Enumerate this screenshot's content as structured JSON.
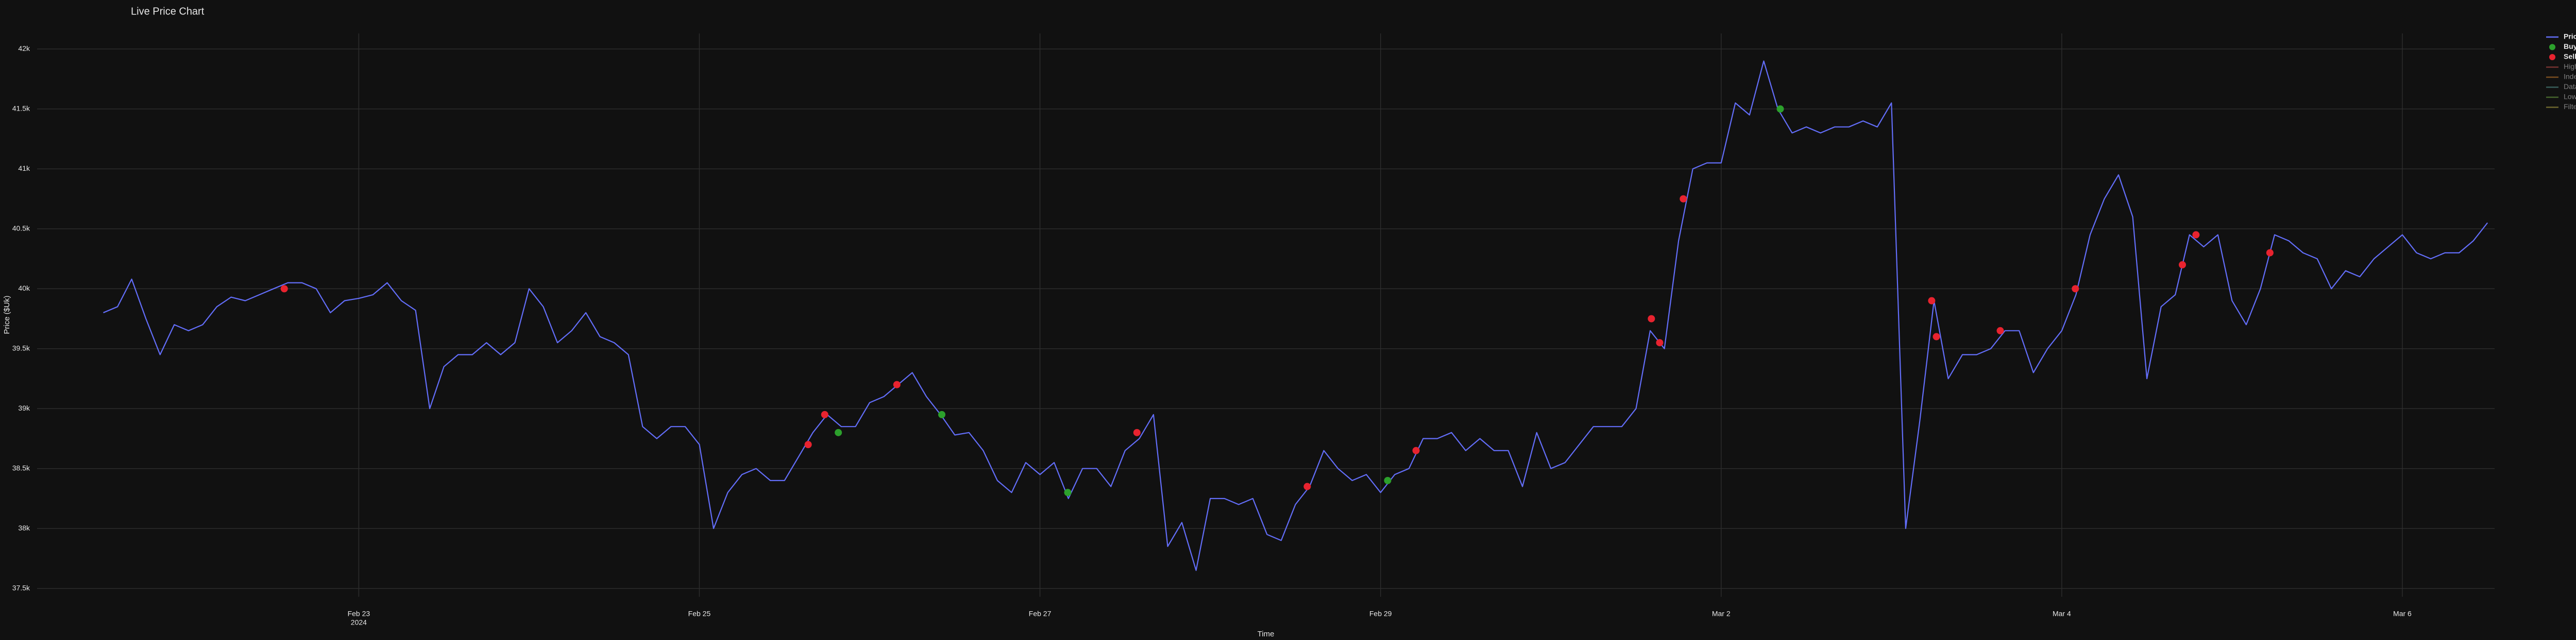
{
  "chart_data": {
    "type": "line",
    "title": "Live Price Chart",
    "x_label": "Time",
    "y_label": "Price ($Uk)",
    "xlim": [
      "2024-02-21 02:40",
      "2024-03-06 13:00"
    ],
    "xticks": [
      {
        "value": "2024-02-23 00:00",
        "label": "Feb 23"
      },
      {
        "value": "2024-02-25 00:00",
        "label": "Feb 25"
      },
      {
        "value": "2024-02-27 00:00",
        "label": "Feb 27"
      },
      {
        "value": "2024-02-29 00:00",
        "label": "Feb 29"
      },
      {
        "value": "2024-03-02 00:00",
        "label": "Mar 2"
      },
      {
        "value": "2024-03-04 00:00",
        "label": "Mar 4"
      },
      {
        "value": "2024-03-06 00:00",
        "label": "Mar 6"
      }
    ],
    "xtick_year": "2024",
    "ylim": [
      37430,
      42130
    ],
    "yticks": [
      {
        "value": 37500,
        "label": "37.5k"
      },
      {
        "value": 38000,
        "label": "38k"
      },
      {
        "value": 38500,
        "label": "38.5k"
      },
      {
        "value": 39000,
        "label": "39k"
      },
      {
        "value": 39500,
        "label": "39.5k"
      },
      {
        "value": 40000,
        "label": "40k"
      },
      {
        "value": 40500,
        "label": "40.5k"
      },
      {
        "value": 41000,
        "label": "41k"
      },
      {
        "value": 41500,
        "label": "41.5k"
      },
      {
        "value": 42000,
        "label": "42k"
      }
    ],
    "grid": true,
    "legend": "outside-right",
    "series": [
      {
        "name": "Price Graph",
        "color": "#636efa",
        "mode": "lines",
        "x": [
          "2024-02-21 12:00",
          "2024-02-21 14:00",
          "2024-02-21 16:00",
          "2024-02-21 18:00",
          "2024-02-21 20:00",
          "2024-02-21 22:00",
          "2024-02-22 00:00",
          "2024-02-22 02:00",
          "2024-02-22 04:00",
          "2024-02-22 06:00",
          "2024-02-22 08:00",
          "2024-02-22 10:00",
          "2024-02-22 12:00",
          "2024-02-22 14:00",
          "2024-02-22 16:00",
          "2024-02-22 18:00",
          "2024-02-22 20:00",
          "2024-02-22 22:00",
          "2024-02-23 00:00",
          "2024-02-23 02:00",
          "2024-02-23 04:00",
          "2024-02-23 06:00",
          "2024-02-23 08:00",
          "2024-02-23 10:00",
          "2024-02-23 12:00",
          "2024-02-23 14:00",
          "2024-02-23 16:00",
          "2024-02-23 18:00",
          "2024-02-23 20:00",
          "2024-02-23 22:00",
          "2024-02-24 00:00",
          "2024-02-24 02:00",
          "2024-02-24 04:00",
          "2024-02-24 06:00",
          "2024-02-24 08:00",
          "2024-02-24 10:00",
          "2024-02-24 12:00",
          "2024-02-24 14:00",
          "2024-02-24 16:00",
          "2024-02-24 18:00",
          "2024-02-24 20:00",
          "2024-02-24 22:00",
          "2024-02-25 00:00",
          "2024-02-25 02:00",
          "2024-02-25 04:00",
          "2024-02-25 06:00",
          "2024-02-25 08:00",
          "2024-02-25 10:00",
          "2024-02-25 12:00",
          "2024-02-25 14:00",
          "2024-02-25 16:00",
          "2024-02-25 18:00",
          "2024-02-25 20:00",
          "2024-02-25 22:00",
          "2024-02-26 00:00",
          "2024-02-26 02:00",
          "2024-02-26 04:00",
          "2024-02-26 06:00",
          "2024-02-26 08:00",
          "2024-02-26 10:00",
          "2024-02-26 12:00",
          "2024-02-26 14:00",
          "2024-02-26 16:00",
          "2024-02-26 18:00",
          "2024-02-26 20:00",
          "2024-02-26 22:00",
          "2024-02-27 00:00",
          "2024-02-27 02:00",
          "2024-02-27 04:00",
          "2024-02-27 06:00",
          "2024-02-27 08:00",
          "2024-02-27 10:00",
          "2024-02-27 12:00",
          "2024-02-27 14:00",
          "2024-02-27 16:00",
          "2024-02-27 18:00",
          "2024-02-27 20:00",
          "2024-02-27 22:00",
          "2024-02-28 00:00",
          "2024-02-28 02:00",
          "2024-02-28 04:00",
          "2024-02-28 06:00",
          "2024-02-28 08:00",
          "2024-02-28 10:00",
          "2024-02-28 12:00",
          "2024-02-28 14:00",
          "2024-02-28 16:00",
          "2024-02-28 18:00",
          "2024-02-28 20:00",
          "2024-02-28 22:00",
          "2024-02-29 00:00",
          "2024-02-29 02:00",
          "2024-02-29 04:00",
          "2024-02-29 06:00",
          "2024-02-29 08:00",
          "2024-02-29 10:00",
          "2024-02-29 12:00",
          "2024-02-29 14:00",
          "2024-02-29 16:00",
          "2024-02-29 18:00",
          "2024-02-29 20:00",
          "2024-02-29 22:00",
          "2024-03-01 00:00",
          "2024-03-01 02:00",
          "2024-03-01 04:00",
          "2024-03-01 06:00",
          "2024-03-01 08:00",
          "2024-03-01 10:00",
          "2024-03-01 12:00",
          "2024-03-01 14:00",
          "2024-03-01 16:00",
          "2024-03-01 18:00",
          "2024-03-01 20:00",
          "2024-03-01 22:00",
          "2024-03-02 00:00",
          "2024-03-02 02:00",
          "2024-03-02 04:00",
          "2024-03-02 06:00",
          "2024-03-02 08:00",
          "2024-03-02 10:00",
          "2024-03-02 12:00",
          "2024-03-02 14:00",
          "2024-03-02 16:00",
          "2024-03-02 18:00",
          "2024-03-02 20:00",
          "2024-03-02 22:00",
          "2024-03-03 00:00",
          "2024-03-03 02:00",
          "2024-03-03 04:00",
          "2024-03-03 06:00",
          "2024-03-03 08:00",
          "2024-03-03 10:00",
          "2024-03-03 12:00",
          "2024-03-03 14:00",
          "2024-03-03 16:00",
          "2024-03-03 18:00",
          "2024-03-03 20:00",
          "2024-03-03 22:00",
          "2024-03-04 00:00",
          "2024-03-04 02:00",
          "2024-03-04 04:00",
          "2024-03-04 06:00",
          "2024-03-04 08:00",
          "2024-03-04 10:00",
          "2024-03-04 12:00",
          "2024-03-04 14:00",
          "2024-03-04 16:00",
          "2024-03-04 18:00",
          "2024-03-04 20:00",
          "2024-03-04 22:00",
          "2024-03-05 00:00",
          "2024-03-05 02:00",
          "2024-03-05 04:00",
          "2024-03-05 06:00",
          "2024-03-05 08:00",
          "2024-03-05 10:00",
          "2024-03-05 12:00",
          "2024-03-05 14:00",
          "2024-03-05 16:00",
          "2024-03-05 18:00",
          "2024-03-05 20:00",
          "2024-03-05 22:00",
          "2024-03-06 00:00",
          "2024-03-06 02:00",
          "2024-03-06 04:00",
          "2024-03-06 06:00",
          "2024-03-06 08:00",
          "2024-03-06 10:00",
          "2024-03-06 12:00"
        ],
        "values": [
          39800,
          39850,
          40080,
          39750,
          39450,
          39700,
          39650,
          39700,
          39850,
          39930,
          39900,
          39950,
          40000,
          40050,
          40050,
          40000,
          39800,
          39900,
          39920,
          39950,
          40050,
          39900,
          39820,
          39000,
          39350,
          39450,
          39450,
          39550,
          39450,
          39550,
          40000,
          39850,
          39550,
          39650,
          39800,
          39600,
          39550,
          39450,
          38850,
          38750,
          38850,
          38850,
          38700,
          38000,
          38300,
          38450,
          38500,
          38400,
          38400,
          38600,
          38800,
          38950,
          38850,
          38850,
          39050,
          39100,
          39200,
          39300,
          39100,
          38950,
          38780,
          38800,
          38650,
          38400,
          38300,
          38550,
          38450,
          38550,
          38250,
          38500,
          38500,
          38350,
          38650,
          38750,
          38950,
          37850,
          38050,
          37650,
          38250,
          38250,
          38200,
          38250,
          37950,
          37900,
          38200,
          38350,
          38650,
          38500,
          38400,
          38450,
          38300,
          38450,
          38500,
          38750,
          38750,
          38800,
          38650,
          38750,
          38650,
          38650,
          38350,
          38800,
          38500,
          38550,
          38700,
          38850,
          38850,
          38850,
          39000,
          39650,
          39500,
          40400,
          41000,
          41050,
          41050,
          41550,
          41450,
          41900,
          41500,
          41300,
          41350,
          41300,
          41350,
          41350,
          41400,
          41350,
          41550,
          38000,
          38900,
          39900,
          39250,
          39450,
          39450,
          39500,
          39650,
          39650,
          39300,
          39500,
          39650,
          39950,
          40450,
          40750,
          40950,
          40600,
          39250,
          39850,
          39950,
          40450,
          40350,
          40450,
          39900,
          39700,
          40000,
          40450,
          40400,
          40300,
          40250,
          40000,
          40150,
          40100,
          40250,
          40350,
          40450,
          40300,
          40250,
          40300,
          40300,
          40400,
          40550
        ]
      },
      {
        "name": "Buy Events",
        "color": "#2ca02c",
        "mode": "markers",
        "x": [
          "2024-02-25 19:35",
          "2024-02-26 10:10",
          "2024-02-27 03:55",
          "2024-02-29 01:00",
          "2024-03-02 08:20"
        ],
        "values": [
          38800,
          38950,
          38300,
          38400,
          41500
        ]
      },
      {
        "name": "Sell Events",
        "color": "#e8232f",
        "mode": "markers",
        "x": [
          "2024-02-22 13:30",
          "2024-02-25 15:20",
          "2024-02-25 17:40",
          "2024-02-26 03:50",
          "2024-02-27 13:40",
          "2024-02-28 13:40",
          "2024-02-29 05:00",
          "2024-03-01 14:10",
          "2024-03-01 15:20",
          "2024-03-01 18:40",
          "2024-03-03 05:40",
          "2024-03-03 06:20",
          "2024-03-03 15:20",
          "2024-03-04 01:55",
          "2024-03-04 17:00",
          "2024-03-04 18:55",
          "2024-03-05 05:20"
        ],
        "values": [
          40000,
          38700,
          38950,
          39200,
          38800,
          38350,
          38650,
          39750,
          39550,
          40750,
          39900,
          39600,
          39650,
          40000,
          40200,
          40450,
          40300
        ]
      },
      {
        "name": "Highest point",
        "color": "#d9534f",
        "mode": "lines",
        "visible": "legendonly"
      },
      {
        "name": "Index range",
        "color": "#e08a2e",
        "mode": "lines",
        "visible": "legendonly"
      },
      {
        "name": "Database range",
        "color": "#5fa8a0",
        "mode": "lines",
        "visible": "legendonly"
      },
      {
        "name": "Lowest point",
        "color": "#7ab648",
        "mode": "lines",
        "visible": "legendonly"
      },
      {
        "name": "Filtered Price Graph",
        "color": "#c7b84a",
        "mode": "lines",
        "visible": "legendonly"
      }
    ]
  }
}
